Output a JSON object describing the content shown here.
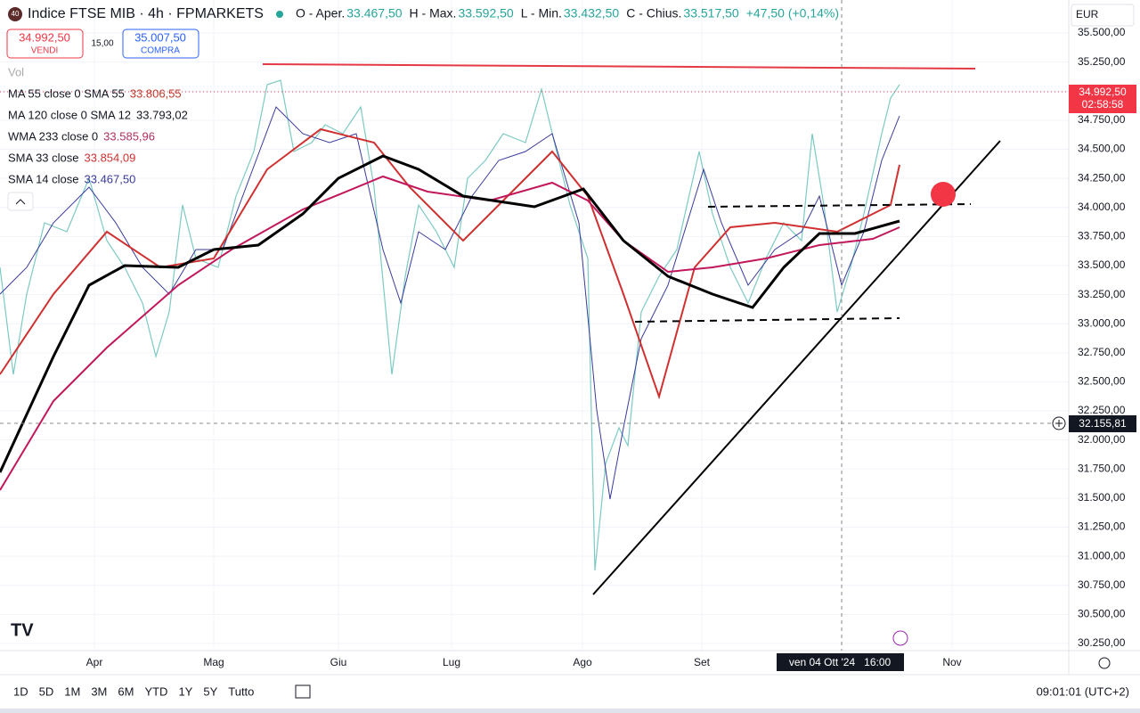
{
  "header": {
    "badge": "40",
    "title": "Indice FTSE MIB · 4h · FPMARKETS",
    "ohlc": [
      "O - Aper.",
      "33.467,50",
      "H - Max.",
      "33.592,50",
      "L - Min.",
      "33.432,50",
      "C - Chius.",
      "33.517,50",
      "+47,50 (+0,14%)"
    ]
  },
  "trade": {
    "sell_price": "34.992,50",
    "sell_label": "VENDI",
    "spread": "15,00",
    "buy_price": "35.007,50",
    "buy_label": "COMPRA"
  },
  "indicators": {
    "vol": "Vol",
    "items": [
      {
        "name": "MA 55 close 0 SMA 55",
        "value": "33.806,55"
      },
      {
        "name": "MA 120 close 0 SMA 12",
        "value": "33.793,02"
      },
      {
        "name": "WMA 233 close 0",
        "value": "33.585,96"
      },
      {
        "name": "SMA 33 close",
        "value": "33.854,09"
      },
      {
        "name": "SMA 14 close",
        "value": "33.467,50"
      }
    ]
  },
  "price_axis": {
    "currency": "EUR",
    "labels": [
      "35.500,00",
      "35.250,00",
      "35.000,00",
      "34.750,00",
      "34.500,00",
      "34.250,00",
      "34.000,00",
      "33.750,00",
      "33.500,00",
      "33.250,00",
      "33.000,00",
      "32.750,00",
      "32.500,00",
      "32.250,00",
      "32.000,00",
      "31.750,00",
      "31.500,00",
      "31.250,00",
      "31.000,00",
      "30.750,00",
      "30.500,00",
      "30.250,00"
    ],
    "current_price": "34.992,50",
    "countdown": "02:58:58",
    "crosshair_price": "32.155,81"
  },
  "time_axis": {
    "labels": [
      "Apr",
      "Mag",
      "Giu",
      "Lug",
      "Ago",
      "Set",
      "Nov"
    ],
    "crosshair_date": "ven 04 Ott '24   16:00"
  },
  "toolbar": {
    "ranges": [
      "1D",
      "5D",
      "1M",
      "3M",
      "6M",
      "YTD",
      "1Y",
      "5Y",
      "Tutto"
    ],
    "clock": "09:01:01 (UTC+2)"
  }
}
